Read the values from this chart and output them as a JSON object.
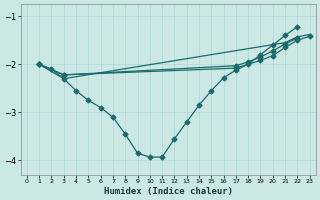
{
  "xlabel": "Humidex (Indice chaleur)",
  "bg_color": "#cce8e5",
  "line_color": "#1a6b6b",
  "grid_color": "#b0d8d4",
  "xlim": [
    -0.5,
    23.5
  ],
  "ylim": [
    -4.3,
    -0.75
  ],
  "yticks": [
    -4,
    -3,
    -2,
    -1
  ],
  "xticks": [
    0,
    1,
    2,
    3,
    4,
    5,
    6,
    7,
    8,
    9,
    10,
    11,
    12,
    13,
    14,
    15,
    16,
    17,
    18,
    19,
    20,
    21,
    22,
    23
  ],
  "line1_x": [
    1,
    2,
    3,
    4,
    5,
    6,
    7,
    8,
    9,
    10,
    11,
    12,
    13,
    14,
    15,
    16,
    17,
    18,
    19,
    20,
    21,
    22
  ],
  "line1_y": [
    -2.0,
    -2.1,
    -2.3,
    -2.55,
    -2.75,
    -2.9,
    -3.1,
    -3.45,
    -3.85,
    -3.93,
    -3.93,
    -3.55,
    -3.2,
    -2.85,
    -2.55,
    -2.28,
    -2.12,
    -2.0,
    -1.8,
    -1.6,
    -1.4,
    -1.22
  ],
  "line2_x": [
    1,
    3,
    21,
    22,
    23
  ],
  "line2_y": [
    -2.0,
    -2.3,
    -1.55,
    -1.43,
    -1.38
  ],
  "line3_x": [
    1,
    3,
    17,
    19,
    20,
    21,
    22,
    23
  ],
  "line3_y": [
    -2.0,
    -2.22,
    -2.08,
    -1.92,
    -1.82,
    -1.65,
    -1.5,
    -1.42
  ],
  "line4_x": [
    1,
    3,
    17,
    18,
    19,
    20,
    21,
    22
  ],
  "line4_y": [
    -2.0,
    -2.22,
    -2.03,
    -1.95,
    -1.85,
    -1.72,
    -1.58,
    -1.45
  ]
}
